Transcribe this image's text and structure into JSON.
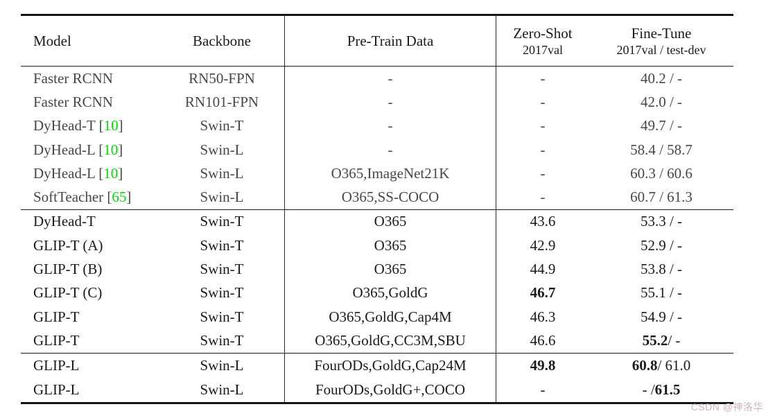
{
  "page": {
    "background": "#ffffff"
  },
  "colors": {
    "rule": "#151515",
    "divider": "#2a2a2a",
    "default_text": "#1a1a1a",
    "section1_text": "#474747",
    "citation_green": "#00e000",
    "watermark": "#ccb6b6"
  },
  "table": {
    "columns": [
      {
        "id": "model",
        "label": "Model"
      },
      {
        "id": "backbone",
        "label": "Backbone"
      },
      {
        "id": "pretrain",
        "label": "Pre-Train Data"
      },
      {
        "id": "zeroshot",
        "label": "Zero-Shot",
        "sublabel": "2017val"
      },
      {
        "id": "finetune",
        "label": "Fine-Tune",
        "sublabel": "2017val / test-dev"
      }
    ],
    "sections": [
      {
        "text_color": "#474747",
        "rows": [
          {
            "model": [
              {
                "t": "Faster RCNN"
              }
            ],
            "backbone": "RN50-FPN",
            "pretrain": "-",
            "zeroshot": [
              {
                "t": "-"
              }
            ],
            "finetune": [
              {
                "t": "40.2 / -"
              }
            ]
          },
          {
            "model": [
              {
                "t": "Faster RCNN"
              }
            ],
            "backbone": "RN101-FPN",
            "pretrain": "-",
            "zeroshot": [
              {
                "t": "-"
              }
            ],
            "finetune": [
              {
                "t": "42.0 / -"
              }
            ]
          },
          {
            "model": [
              {
                "t": "DyHead-T ["
              },
              {
                "t": "10",
                "green": true
              },
              {
                "t": "]"
              }
            ],
            "backbone": "Swin-T",
            "pretrain": "-",
            "zeroshot": [
              {
                "t": "-"
              }
            ],
            "finetune": [
              {
                "t": "49.7 / -"
              }
            ]
          },
          {
            "model": [
              {
                "t": "DyHead-L ["
              },
              {
                "t": "10",
                "green": true
              },
              {
                "t": "]"
              }
            ],
            "backbone": "Swin-L",
            "pretrain": "-",
            "zeroshot": [
              {
                "t": "-"
              }
            ],
            "finetune": [
              {
                "t": "58.4 / 58.7"
              }
            ]
          },
          {
            "model": [
              {
                "t": "DyHead-L ["
              },
              {
                "t": "10",
                "green": true
              },
              {
                "t": "]"
              }
            ],
            "backbone": "Swin-L",
            "pretrain": "O365,ImageNet21K",
            "zeroshot": [
              {
                "t": "-"
              }
            ],
            "finetune": [
              {
                "t": "60.3 / 60.6"
              }
            ]
          },
          {
            "model": [
              {
                "t": "SoftTeacher ["
              },
              {
                "t": "65",
                "green": true
              },
              {
                "t": "]"
              }
            ],
            "backbone": "Swin-L",
            "pretrain": "O365,SS-COCO",
            "zeroshot": [
              {
                "t": "-"
              }
            ],
            "finetune": [
              {
                "t": "60.7 / 61.3"
              }
            ]
          }
        ]
      },
      {
        "text_color": "#1a1a1a",
        "rows": [
          {
            "model": [
              {
                "t": "DyHead-T"
              }
            ],
            "backbone": "Swin-T",
            "pretrain": "O365",
            "zeroshot": [
              {
                "t": "43.6"
              }
            ],
            "finetune": [
              {
                "t": "53.3 / -"
              }
            ]
          },
          {
            "model": [
              {
                "t": "GLIP-T (A)"
              }
            ],
            "backbone": "Swin-T",
            "pretrain": "O365",
            "zeroshot": [
              {
                "t": "42.9"
              }
            ],
            "finetune": [
              {
                "t": "52.9 / -"
              }
            ]
          },
          {
            "model": [
              {
                "t": "GLIP-T (B)"
              }
            ],
            "backbone": "Swin-T",
            "pretrain": "O365",
            "zeroshot": [
              {
                "t": "44.9"
              }
            ],
            "finetune": [
              {
                "t": "53.8 / -"
              }
            ]
          },
          {
            "model": [
              {
                "t": "GLIP-T (C)"
              }
            ],
            "backbone": "Swin-T",
            "pretrain": "O365,GoldG",
            "zeroshot": [
              {
                "t": "46.7",
                "bold": true
              }
            ],
            "finetune": [
              {
                "t": "55.1 / -"
              }
            ]
          },
          {
            "model": [
              {
                "t": "GLIP-T"
              }
            ],
            "backbone": "Swin-T",
            "pretrain": "O365,GoldG,Cap4M",
            "zeroshot": [
              {
                "t": "46.3"
              }
            ],
            "finetune": [
              {
                "t": "54.9 / -"
              }
            ]
          },
          {
            "model": [
              {
                "t": "GLIP-T"
              }
            ],
            "backbone": "Swin-T",
            "pretrain": "O365,GoldG,CC3M,SBU",
            "zeroshot": [
              {
                "t": "46.6"
              }
            ],
            "finetune": [
              {
                "t": "55.2",
                "bold": true
              },
              {
                "t": " / -"
              }
            ]
          }
        ]
      },
      {
        "text_color": "#1a1a1a",
        "rows": [
          {
            "model": [
              {
                "t": "GLIP-L"
              }
            ],
            "backbone": "Swin-L",
            "pretrain": "FourODs,GoldG,Cap24M",
            "zeroshot": [
              {
                "t": "49.8",
                "bold": true
              }
            ],
            "finetune": [
              {
                "t": "60.8",
                "bold": true
              },
              {
                "t": " / 61.0"
              }
            ]
          },
          {
            "model": [
              {
                "t": "GLIP-L"
              }
            ],
            "backbone": "Swin-L",
            "pretrain": "FourODs,GoldG+,COCO",
            "zeroshot": [
              {
                "t": "-"
              }
            ],
            "finetune": [
              {
                "t": "- / "
              },
              {
                "t": "61.5",
                "bold": true
              }
            ]
          }
        ]
      }
    ]
  },
  "watermark": {
    "text": "CSDN @神洛华"
  }
}
